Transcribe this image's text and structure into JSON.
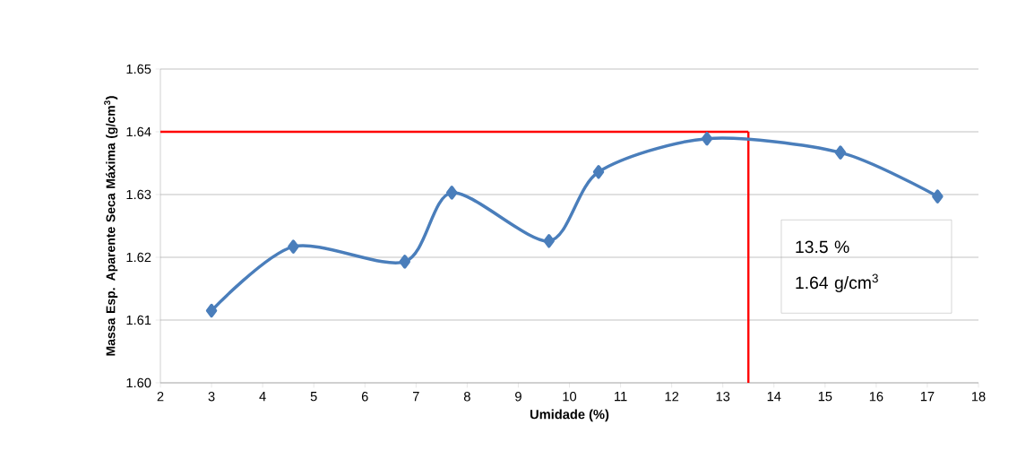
{
  "chart_data": {
    "type": "line",
    "xlabel": "Umidade (%)",
    "ylabel": "Massa Esp. Aparente Seca Máxima (g/cm$^{3}$)",
    "x": [
      3,
      4.6,
      6.78,
      7.7,
      9.6,
      10.57,
      12.69,
      15.3,
      17.2
    ],
    "series": [
      {
        "color": "#4a7ebb",
        "values": [
          1.6115,
          1.6217,
          1.6193,
          1.6303,
          1.6226,
          1.6336,
          1.6389,
          1.6367,
          1.6297
        ]
      }
    ],
    "xlim": [
      2,
      18
    ],
    "xticks": [
      2,
      3,
      4,
      5,
      6,
      7,
      8,
      9,
      10,
      11,
      12,
      13,
      14,
      15,
      16,
      17,
      18
    ],
    "ylim": [
      1.6,
      1.65
    ],
    "yticks": [
      {
        "value": 1.6,
        "label": "1.60"
      },
      1.61,
      1.62,
      1.63,
      1.64,
      1.65
    ],
    "grid": "y",
    "marker": "diamond",
    "line_style": "solid",
    "ref_lines": [
      {
        "axis": "x",
        "value": 13.5,
        "color": "#ff0000"
      },
      {
        "axis": "y",
        "value": 1.64,
        "color": "#ff0000"
      }
    ],
    "annotations": [
      "13.5 %",
      "1.64 g/cm$^{3}$"
    ]
  }
}
